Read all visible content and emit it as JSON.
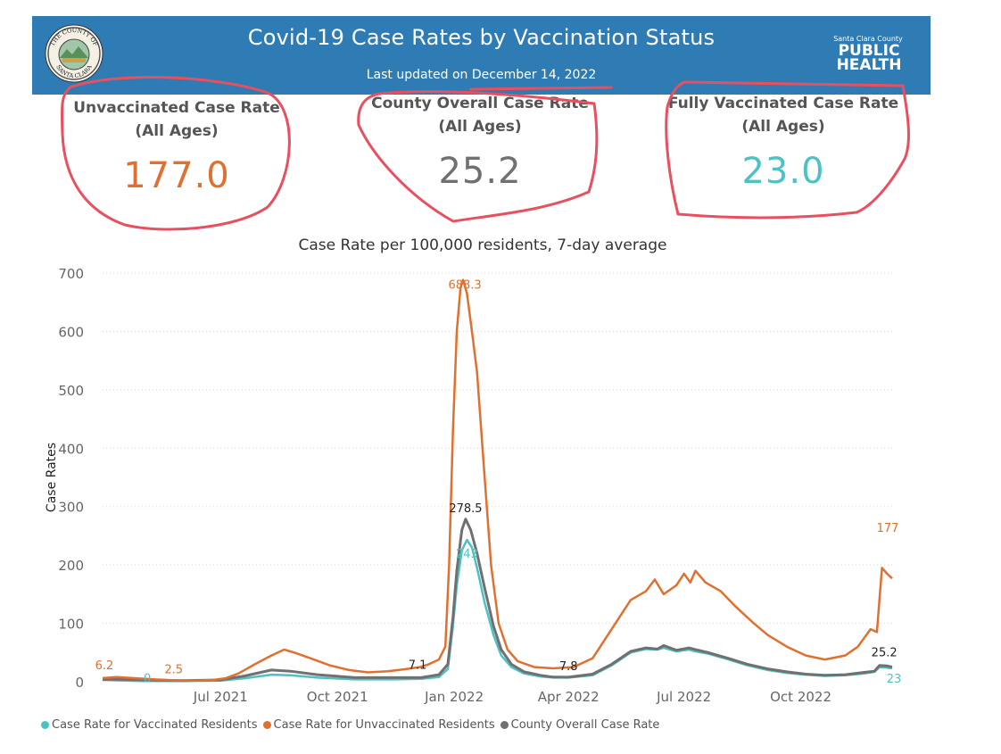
{
  "header": {
    "title": "Covid-19 Case Rates by Vaccination Status",
    "last_updated_prefix": "Last updated on ",
    "last_updated_date": "December 14, 2022",
    "seal_text_top": "THE COUNTY OF",
    "seal_text_bottom": "SANTA CLARA",
    "logo_small": "Santa Clara County",
    "logo_line1": "PUBLIC",
    "logo_line2": "HEALTH",
    "header_color": "#2f7bb3"
  },
  "kpis": [
    {
      "label_line1": "Unvaccinated Case Rate",
      "label_line2": "(All Ages)",
      "value": "177.0",
      "color": "#e07030"
    },
    {
      "label_line1": "County Overall Case Rate",
      "label_line2": "(All Ages)",
      "value": "25.2",
      "color": "#707070"
    },
    {
      "label_line1": "Fully Vaccinated Case Rate",
      "label_line2": "(All Ages)",
      "value": "23.0",
      "color": "#4cc2c4"
    }
  ],
  "chart_data": {
    "type": "line",
    "title": "Case Rate per 100,000 residents, 7-day average",
    "xlabel": "",
    "ylabel": "Case Rates",
    "ylim": [
      0,
      700
    ],
    "yticks": [
      0,
      100,
      200,
      300,
      400,
      500,
      600,
      700
    ],
    "xlim": [
      "2021-03-30",
      "2022-12-12"
    ],
    "xticks": [
      {
        "date": "2021-07-01",
        "label": "Jul 2021"
      },
      {
        "date": "2021-10-01",
        "label": "Oct 2021"
      },
      {
        "date": "2022-01-01",
        "label": "Jan 2022"
      },
      {
        "date": "2022-04-01",
        "label": "Apr 2022"
      },
      {
        "date": "2022-07-01",
        "label": "Jul 2022"
      },
      {
        "date": "2022-10-01",
        "label": "Oct 2022"
      }
    ],
    "grid": true,
    "legend_position": "bottom-left",
    "series": [
      {
        "name": "Case Rate for Vaccinated Residents",
        "color": "#4cc2c4",
        "points": [
          [
            "2021-03-30",
            3
          ],
          [
            "2021-04-15",
            2
          ],
          [
            "2021-05-01",
            1
          ],
          [
            "2021-06-01",
            1
          ],
          [
            "2021-07-01",
            2
          ],
          [
            "2021-07-20",
            6
          ],
          [
            "2021-08-10",
            12
          ],
          [
            "2021-08-25",
            11
          ],
          [
            "2021-09-15",
            7
          ],
          [
            "2021-10-15",
            4
          ],
          [
            "2021-11-15",
            4
          ],
          [
            "2021-12-06",
            5
          ],
          [
            "2021-12-20",
            8
          ],
          [
            "2021-12-27",
            22
          ],
          [
            "2021-12-31",
            95
          ],
          [
            "2022-01-03",
            165
          ],
          [
            "2022-01-07",
            225
          ],
          [
            "2022-01-11",
            243
          ],
          [
            "2022-01-15",
            230
          ],
          [
            "2022-01-19",
            195
          ],
          [
            "2022-01-25",
            135
          ],
          [
            "2022-02-01",
            80
          ],
          [
            "2022-02-07",
            45
          ],
          [
            "2022-02-15",
            25
          ],
          [
            "2022-02-25",
            14
          ],
          [
            "2022-03-10",
            9
          ],
          [
            "2022-03-20",
            7
          ],
          [
            "2022-04-01",
            7
          ],
          [
            "2022-04-20",
            11
          ],
          [
            "2022-05-05",
            28
          ],
          [
            "2022-05-20",
            50
          ],
          [
            "2022-06-01",
            56
          ],
          [
            "2022-06-10",
            55
          ],
          [
            "2022-06-15",
            58
          ],
          [
            "2022-06-25",
            52
          ],
          [
            "2022-07-05",
            55
          ],
          [
            "2022-07-10",
            52
          ],
          [
            "2022-07-20",
            48
          ],
          [
            "2022-08-05",
            38
          ],
          [
            "2022-08-20",
            28
          ],
          [
            "2022-09-05",
            20
          ],
          [
            "2022-09-20",
            15
          ],
          [
            "2022-10-05",
            12
          ],
          [
            "2022-10-20",
            10
          ],
          [
            "2022-11-05",
            11
          ],
          [
            "2022-11-20",
            14
          ],
          [
            "2022-11-28",
            17
          ],
          [
            "2022-12-02",
            25
          ],
          [
            "2022-12-08",
            24
          ],
          [
            "2022-12-12",
            23
          ]
        ]
      },
      {
        "name": "Case Rate for Unvaccinated Residents",
        "color": "#e07030",
        "points": [
          [
            "2021-03-30",
            6.2
          ],
          [
            "2021-04-10",
            8
          ],
          [
            "2021-04-25",
            6
          ],
          [
            "2021-05-10",
            4
          ],
          [
            "2021-05-25",
            2.5
          ],
          [
            "2021-06-10",
            2
          ],
          [
            "2021-06-25",
            3
          ],
          [
            "2021-07-05",
            6
          ],
          [
            "2021-07-15",
            14
          ],
          [
            "2021-07-28",
            30
          ],
          [
            "2021-08-10",
            45
          ],
          [
            "2021-08-20",
            55
          ],
          [
            "2021-08-28",
            50
          ],
          [
            "2021-09-10",
            40
          ],
          [
            "2021-09-25",
            28
          ],
          [
            "2021-10-10",
            20
          ],
          [
            "2021-10-25",
            16
          ],
          [
            "2021-11-10",
            18
          ],
          [
            "2021-11-25",
            22
          ],
          [
            "2021-12-05",
            25
          ],
          [
            "2021-12-12",
            30
          ],
          [
            "2021-12-20",
            38
          ],
          [
            "2021-12-25",
            60
          ],
          [
            "2021-12-28",
            200
          ],
          [
            "2021-12-31",
            430
          ],
          [
            "2022-01-03",
            600
          ],
          [
            "2022-01-06",
            675
          ],
          [
            "2022-01-08",
            688.3
          ],
          [
            "2022-01-11",
            665
          ],
          [
            "2022-01-15",
            600
          ],
          [
            "2022-01-19",
            530
          ],
          [
            "2022-01-24",
            380
          ],
          [
            "2022-01-30",
            200
          ],
          [
            "2022-02-05",
            100
          ],
          [
            "2022-02-12",
            55
          ],
          [
            "2022-02-20",
            35
          ],
          [
            "2022-03-05",
            25
          ],
          [
            "2022-03-20",
            23
          ],
          [
            "2022-04-05",
            25
          ],
          [
            "2022-04-20",
            40
          ],
          [
            "2022-05-05",
            90
          ],
          [
            "2022-05-20",
            140
          ],
          [
            "2022-06-01",
            155
          ],
          [
            "2022-06-08",
            175
          ],
          [
            "2022-06-15",
            150
          ],
          [
            "2022-06-25",
            165
          ],
          [
            "2022-07-01",
            185
          ],
          [
            "2022-07-06",
            170
          ],
          [
            "2022-07-10",
            190
          ],
          [
            "2022-07-18",
            170
          ],
          [
            "2022-07-30",
            155
          ],
          [
            "2022-08-10",
            130
          ],
          [
            "2022-08-25",
            100
          ],
          [
            "2022-09-05",
            80
          ],
          [
            "2022-09-20",
            60
          ],
          [
            "2022-10-05",
            45
          ],
          [
            "2022-10-20",
            38
          ],
          [
            "2022-11-05",
            45
          ],
          [
            "2022-11-15",
            60
          ],
          [
            "2022-11-25",
            90
          ],
          [
            "2022-11-30",
            85
          ],
          [
            "2022-12-04",
            195
          ],
          [
            "2022-12-08",
            185
          ],
          [
            "2022-12-12",
            177
          ]
        ]
      },
      {
        "name": "County Overall Case Rate",
        "color": "#707070",
        "points": [
          [
            "2021-03-30",
            4
          ],
          [
            "2021-04-15",
            4
          ],
          [
            "2021-05-01",
            3
          ],
          [
            "2021-06-01",
            2
          ],
          [
            "2021-07-01",
            3
          ],
          [
            "2021-07-20",
            10
          ],
          [
            "2021-08-10",
            20
          ],
          [
            "2021-08-25",
            18
          ],
          [
            "2021-09-15",
            12
          ],
          [
            "2021-10-15",
            7
          ],
          [
            "2021-11-15",
            7
          ],
          [
            "2021-12-06",
            7.1
          ],
          [
            "2021-12-20",
            12
          ],
          [
            "2021-12-27",
            30
          ],
          [
            "2021-12-31",
            110
          ],
          [
            "2022-01-03",
            190
          ],
          [
            "2022-01-07",
            260
          ],
          [
            "2022-01-10",
            278.5
          ],
          [
            "2022-01-14",
            260
          ],
          [
            "2022-01-19",
            220
          ],
          [
            "2022-01-25",
            160
          ],
          [
            "2022-02-01",
            95
          ],
          [
            "2022-02-07",
            55
          ],
          [
            "2022-02-15",
            30
          ],
          [
            "2022-02-25",
            17
          ],
          [
            "2022-03-10",
            11
          ],
          [
            "2022-03-20",
            8
          ],
          [
            "2022-04-01",
            7.8
          ],
          [
            "2022-04-20",
            13
          ],
          [
            "2022-05-05",
            30
          ],
          [
            "2022-05-20",
            52
          ],
          [
            "2022-06-01",
            58
          ],
          [
            "2022-06-10",
            56
          ],
          [
            "2022-06-15",
            62
          ],
          [
            "2022-06-25",
            54
          ],
          [
            "2022-07-05",
            58
          ],
          [
            "2022-07-10",
            55
          ],
          [
            "2022-07-20",
            50
          ],
          [
            "2022-08-05",
            40
          ],
          [
            "2022-08-20",
            30
          ],
          [
            "2022-09-05",
            22
          ],
          [
            "2022-09-20",
            17
          ],
          [
            "2022-10-05",
            13
          ],
          [
            "2022-10-20",
            11
          ],
          [
            "2022-11-05",
            12
          ],
          [
            "2022-11-20",
            16
          ],
          [
            "2022-11-28",
            18
          ],
          [
            "2022-12-02",
            28
          ],
          [
            "2022-12-08",
            27
          ],
          [
            "2022-12-12",
            25.2
          ]
        ]
      }
    ],
    "annotations": [
      {
        "series": 1,
        "x": "2021-03-30",
        "y": 6.2,
        "label": "6.2",
        "color": "#e07030"
      },
      {
        "series": 1,
        "x": "2021-05-25",
        "y": 2.5,
        "label": "2.5",
        "color": "#e07030"
      },
      {
        "series": 0,
        "x": "2021-04-30",
        "y": 0.5,
        "label": "0",
        "color": "#4cc2c4"
      },
      {
        "series": 2,
        "x": "2021-12-06",
        "y": 7.1,
        "label": "7.1",
        "color": "#222222"
      },
      {
        "series": 1,
        "x": "2022-01-08",
        "y": 688.3,
        "label": "688.3",
        "color": "#e07030"
      },
      {
        "series": 2,
        "x": "2022-01-10",
        "y": 278.5,
        "label": "278.5",
        "color": "#222222"
      },
      {
        "series": 0,
        "x": "2022-01-11",
        "y": 243,
        "label": "243",
        "color": "#4cc2c4"
      },
      {
        "series": 2,
        "x": "2022-04-01",
        "y": 7.8,
        "label": "7.8",
        "color": "#222222"
      },
      {
        "series": 1,
        "x": "2022-12-05",
        "y": 177,
        "label": "177",
        "color": "#e07030"
      },
      {
        "series": 2,
        "x": "2022-12-10",
        "y": 25.2,
        "label": "25.2",
        "color": "#222222"
      },
      {
        "series": 0,
        "x": "2022-12-12",
        "y": 23,
        "label": "23",
        "color": "#4cc2c4"
      }
    ]
  },
  "highlight_color": "#e85060"
}
